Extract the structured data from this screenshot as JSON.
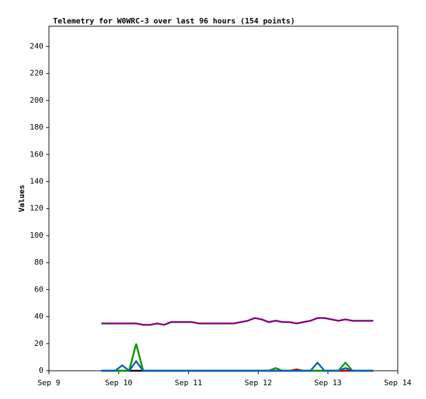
{
  "chart_data": {
    "type": "line",
    "title": "Telemetry for W0WRC-3 over last 96 hours (154 points)",
    "y_label": "Values",
    "x": [
      0.75,
      0.85,
      0.95,
      1.05,
      1.15,
      1.25,
      1.35,
      1.45,
      1.55,
      1.65,
      1.75,
      1.85,
      1.95,
      2.05,
      2.15,
      2.25,
      2.35,
      2.45,
      2.55,
      2.65,
      2.75,
      2.85,
      2.95,
      3.05,
      3.15,
      3.25,
      3.35,
      3.45,
      3.55,
      3.65,
      3.75,
      3.85,
      3.95,
      4.05,
      4.15,
      4.25,
      4.35,
      4.45,
      4.55,
      4.65
    ],
    "series": [
      {
        "color": "#000000",
        "values": [
          0,
          0,
          0,
          0,
          0,
          0,
          0,
          0,
          0,
          0,
          0,
          0,
          0,
          0,
          0,
          0,
          0,
          0,
          0,
          0,
          0,
          0,
          0,
          0,
          0,
          0,
          0,
          0,
          0,
          0,
          0,
          0,
          0,
          0,
          0,
          0,
          0,
          0,
          0,
          0
        ]
      },
      {
        "color": "#cc0000",
        "values": [
          0,
          0,
          0,
          0,
          0,
          20,
          0,
          0,
          0,
          0,
          0,
          0,
          0,
          0,
          0,
          0,
          0,
          0,
          0,
          0,
          0,
          0,
          0,
          0,
          0,
          0,
          0,
          0,
          1,
          0,
          0,
          0,
          0,
          0,
          0,
          0,
          0,
          0,
          0,
          0
        ]
      },
      {
        "color": "#00a000",
        "values": [
          0,
          0,
          0,
          0,
          0,
          20,
          0,
          0,
          0,
          0,
          0,
          0,
          0,
          0,
          0,
          0,
          0,
          0,
          0,
          0,
          0,
          0,
          0,
          0,
          0,
          2,
          0,
          0,
          0,
          0,
          0,
          0,
          0,
          0,
          0,
          6,
          0,
          0,
          0,
          0
        ]
      },
      {
        "color": "#0060c0",
        "values": [
          0,
          0,
          0,
          4,
          0,
          7,
          0,
          0,
          0,
          0,
          0,
          0,
          0,
          0,
          0,
          0,
          0,
          0,
          0,
          0,
          0,
          0,
          0,
          0,
          0,
          0,
          0,
          0,
          0,
          0,
          0,
          6,
          0,
          0,
          0,
          2,
          0,
          0,
          0,
          0
        ]
      },
      {
        "color": "#800080",
        "values": [
          35,
          35,
          35,
          35,
          35,
          35,
          34,
          34,
          35,
          34,
          36,
          36,
          36,
          36,
          35,
          35,
          35,
          35,
          35,
          35,
          36,
          37,
          39,
          38,
          36,
          37,
          36,
          36,
          35,
          36,
          37,
          39,
          39,
          38,
          37,
          38,
          37,
          37,
          37,
          37
        ]
      }
    ],
    "xlim": [
      0,
      5
    ],
    "xticks": [
      {
        "value": 0,
        "label": "Sep 9"
      },
      {
        "value": 1,
        "label": "Sep 10"
      },
      {
        "value": 2,
        "label": "Sep 11"
      },
      {
        "value": 3,
        "label": "Sep 12"
      },
      {
        "value": 4,
        "label": "Sep 13"
      },
      {
        "value": 5,
        "label": "Sep 14"
      }
    ],
    "ylim": [
      0,
      255
    ],
    "yticks": [
      0,
      20,
      40,
      60,
      80,
      100,
      120,
      140,
      160,
      180,
      200,
      220,
      240
    ]
  }
}
